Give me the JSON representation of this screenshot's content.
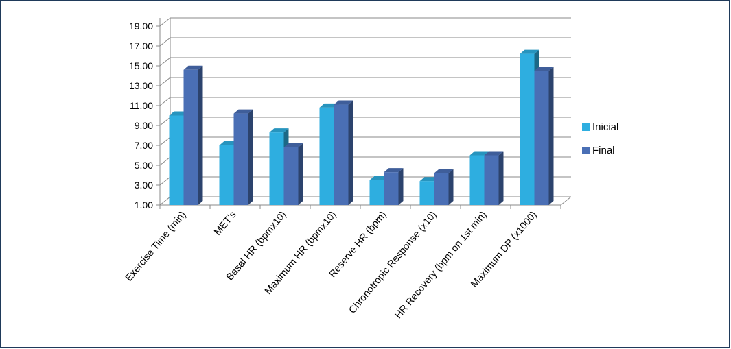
{
  "chart_data": {
    "type": "bar",
    "title": "",
    "xlabel": "",
    "ylabel": "",
    "ylim": [
      1,
      19
    ],
    "yticks": [
      "1.00",
      "3.00",
      "5.00",
      "7.00",
      "9.00",
      "11.00",
      "13.00",
      "15.00",
      "17.00",
      "19.00"
    ],
    "grid": true,
    "legend_position": "right",
    "categories": [
      "Exercise Time (min)",
      "MET's",
      "Basal HR (bpmx10)",
      "Maximum HR (bpmx10)",
      "Reserve HR (bpm)",
      "Chronotropic Response (x10)",
      "HR Recovery (bpm on 1st min)",
      "Maximum DP (x1000)"
    ],
    "series": [
      {
        "name": "Inicial",
        "color": "#2eaee0",
        "values": [
          10.0,
          7.0,
          8.3,
          10.8,
          3.5,
          3.4,
          6.0,
          16.2
        ]
      },
      {
        "name": "Final",
        "color": "#4a6fb5",
        "values": [
          14.6,
          10.2,
          6.8,
          11.1,
          4.3,
          4.2,
          6.0,
          14.5
        ]
      }
    ]
  }
}
